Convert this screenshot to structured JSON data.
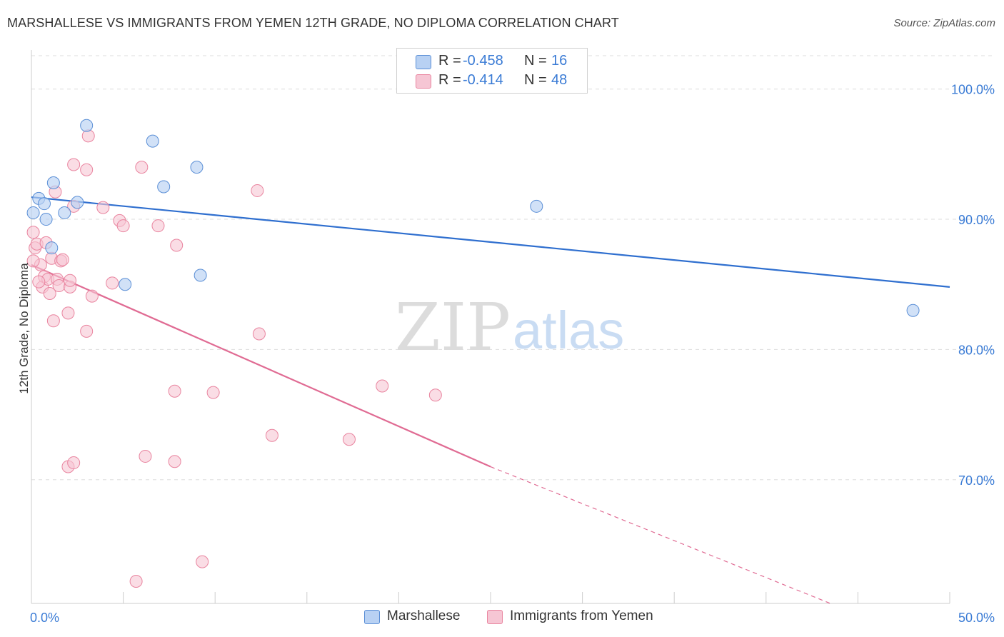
{
  "title": "MARSHALLESE VS IMMIGRANTS FROM YEMEN 12TH GRADE, NO DIPLOMA CORRELATION CHART",
  "source": "Source: ZipAtlas.com",
  "watermark": {
    "zip": "ZIP",
    "atlas": "atlas"
  },
  "colors": {
    "blue_stroke": "#5b8fd6",
    "blue_fill": "#b8d1f3",
    "blue_line": "#2f6fcf",
    "pink_stroke": "#e9849f",
    "pink_fill": "#f6c6d4",
    "pink_line": "#e06b93",
    "axis_text": "#3a7bd5",
    "grid": "#dddddd"
  },
  "stats": {
    "rows": [
      {
        "r_label": "R =",
        "r_value": "-0.458",
        "n_label": "N =",
        "n_value": "16"
      },
      {
        "r_label": "R =",
        "r_value": "-0.414",
        "n_label": "N =",
        "n_value": "48"
      }
    ]
  },
  "legend": {
    "series1": "Marshallese",
    "series2": "Immigrants from Yemen"
  },
  "chart_data": {
    "type": "scatter",
    "xlabel": "",
    "ylabel": "12th Grade, No Diploma",
    "xlim": [
      0,
      50
    ],
    "ylim": [
      60.5,
      103
    ],
    "x_tick_labels": [
      {
        "value": 0,
        "label": "0.0%"
      },
      {
        "value": 50,
        "label": "50.0%"
      }
    ],
    "y_tick_labels": [
      {
        "value": 100,
        "label": "100.0%"
      },
      {
        "value": 90,
        "label": "90.0%"
      },
      {
        "value": 80,
        "label": "80.0%"
      },
      {
        "value": 70,
        "label": "70.0%"
      }
    ],
    "series": [
      {
        "name": "Marshallese",
        "points": [
          [
            0.1,
            90.5
          ],
          [
            0.4,
            91.6
          ],
          [
            0.7,
            91.2
          ],
          [
            0.8,
            90.0
          ],
          [
            1.1,
            87.8
          ],
          [
            1.2,
            92.8
          ],
          [
            1.8,
            90.5
          ],
          [
            2.5,
            91.3
          ],
          [
            3.0,
            97.2
          ],
          [
            5.1,
            85.0
          ],
          [
            6.6,
            96.0
          ],
          [
            7.2,
            92.5
          ],
          [
            9.0,
            94.0
          ],
          [
            9.2,
            85.7
          ],
          [
            27.5,
            91.0
          ],
          [
            48.0,
            83.0
          ]
        ],
        "trend": {
          "x": [
            0,
            50
          ],
          "y": [
            91.7,
            84.8
          ]
        }
      },
      {
        "name": "Immigrants from Yemen",
        "points": [
          [
            0.1,
            89.0
          ],
          [
            0.2,
            87.8
          ],
          [
            0.3,
            88.1
          ],
          [
            0.5,
            86.5
          ],
          [
            0.6,
            84.8
          ],
          [
            0.7,
            85.6
          ],
          [
            0.8,
            88.2
          ],
          [
            0.9,
            85.4
          ],
          [
            1.0,
            84.3
          ],
          [
            1.1,
            87.0
          ],
          [
            1.2,
            82.2
          ],
          [
            1.3,
            92.1
          ],
          [
            1.4,
            85.4
          ],
          [
            1.5,
            84.9
          ],
          [
            1.6,
            86.8
          ],
          [
            1.7,
            86.9
          ],
          [
            2.0,
            82.8
          ],
          [
            2.1,
            84.8
          ],
          [
            2.1,
            85.3
          ],
          [
            2.3,
            91.0
          ],
          [
            2.3,
            94.2
          ],
          [
            3.0,
            93.8
          ],
          [
            3.0,
            81.4
          ],
          [
            3.1,
            96.4
          ],
          [
            3.3,
            84.1
          ],
          [
            3.9,
            90.9
          ],
          [
            4.4,
            85.1
          ],
          [
            4.8,
            89.9
          ],
          [
            5.0,
            89.5
          ],
          [
            6.0,
            94.0
          ],
          [
            6.9,
            89.5
          ],
          [
            7.9,
            88.0
          ],
          [
            7.8,
            76.8
          ],
          [
            9.9,
            76.7
          ],
          [
            12.3,
            92.2
          ],
          [
            12.4,
            81.2
          ],
          [
            13.1,
            73.4
          ],
          [
            17.3,
            73.1
          ],
          [
            19.1,
            77.2
          ],
          [
            22.0,
            76.5
          ],
          [
            6.2,
            71.8
          ],
          [
            7.8,
            71.4
          ],
          [
            2.0,
            71.0
          ],
          [
            2.3,
            71.3
          ],
          [
            9.3,
            63.7
          ],
          [
            5.7,
            62.2
          ],
          [
            0.1,
            86.8
          ],
          [
            0.4,
            85.2
          ]
        ],
        "trend": {
          "x": [
            0,
            25
          ],
          "y": [
            86.5,
            71.0
          ]
        },
        "trend_extension": {
          "x": [
            25,
            43.5
          ],
          "y": [
            71.0,
            60.5
          ]
        }
      }
    ]
  }
}
